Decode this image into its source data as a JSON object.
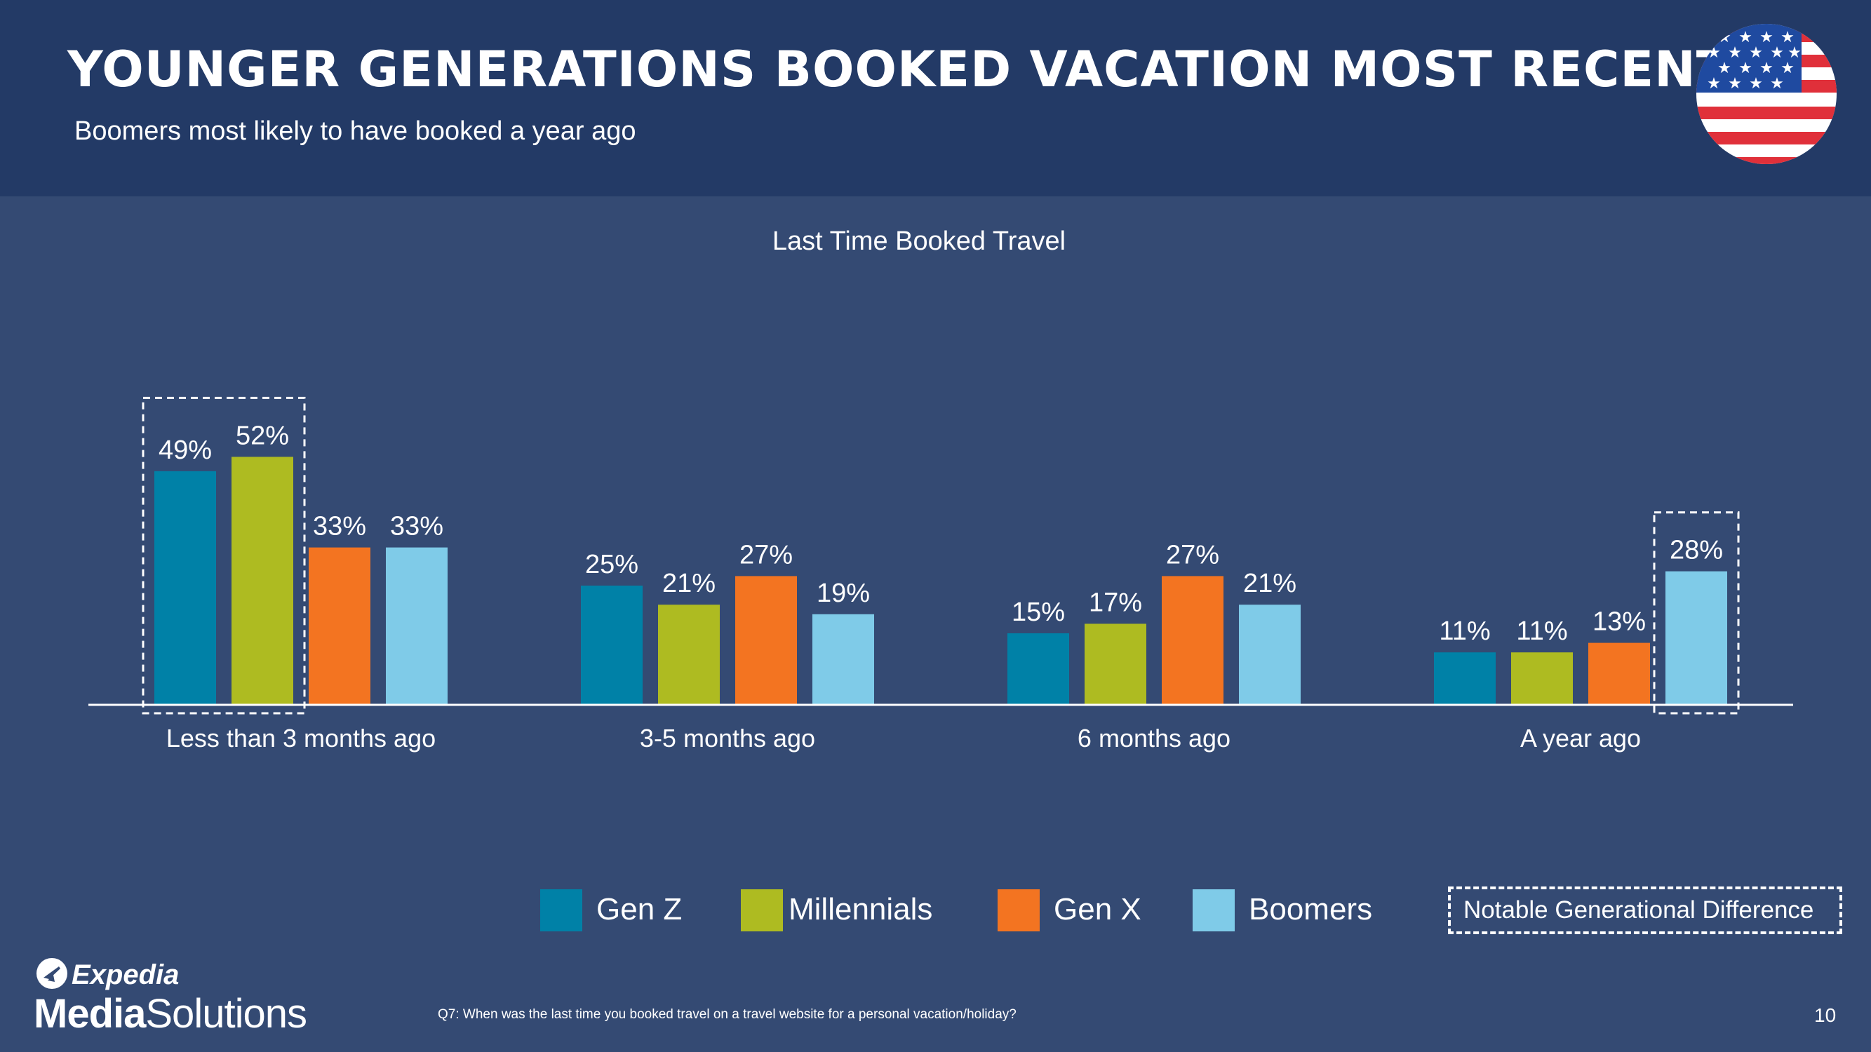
{
  "header": {
    "title": "YOUNGER GENERATIONS BOOKED VACATION MOST RECENTLY",
    "subtitle": "Boomers most likely to have booked a year ago",
    "flag_icon": "us-flag-icon"
  },
  "chart_data": {
    "type": "bar",
    "title": "Last Time Booked Travel",
    "categories": [
      "Less than 3 months ago",
      "3-5 months ago",
      "6 months ago",
      "A year ago"
    ],
    "series": [
      {
        "name": "Gen Z",
        "color": "#0081a7",
        "values": [
          49,
          25,
          15,
          11
        ],
        "labels": [
          "49%",
          "25%",
          "15%",
          "11%"
        ]
      },
      {
        "name": "Millennials",
        "color": "#aebb21",
        "values": [
          52,
          21,
          17,
          11
        ],
        "labels": [
          "52%",
          "21%",
          "17%",
          "11%"
        ]
      },
      {
        "name": "Gen X",
        "color": "#f37421",
        "values": [
          33,
          27,
          27,
          13
        ],
        "labels": [
          "33%",
          "27%",
          "27%",
          "13%"
        ]
      },
      {
        "name": "Boomers",
        "color": "#7fcbe8",
        "values": [
          33,
          19,
          21,
          28
        ],
        "labels": [
          "33%",
          "19%",
          "21%",
          "28%"
        ]
      }
    ],
    "unit": "%",
    "ylim": [
      0,
      60
    ],
    "grid": false,
    "legend_placement": "bottom",
    "highlights": [
      {
        "category_index": 0,
        "series_range": [
          0,
          1
        ],
        "style": "dashed"
      },
      {
        "category_index": 3,
        "series_range": [
          3,
          3
        ],
        "style": "dashed"
      }
    ]
  },
  "legend": {
    "notable_label": "Notable Generational Difference"
  },
  "footer": {
    "logo_top": "Expedia",
    "logo_bold": "Media",
    "logo_rest": "Solutions",
    "footnote": "Q7: When was the last time you booked travel on a travel website for a personal vacation/holiday?",
    "page_number": "10"
  }
}
